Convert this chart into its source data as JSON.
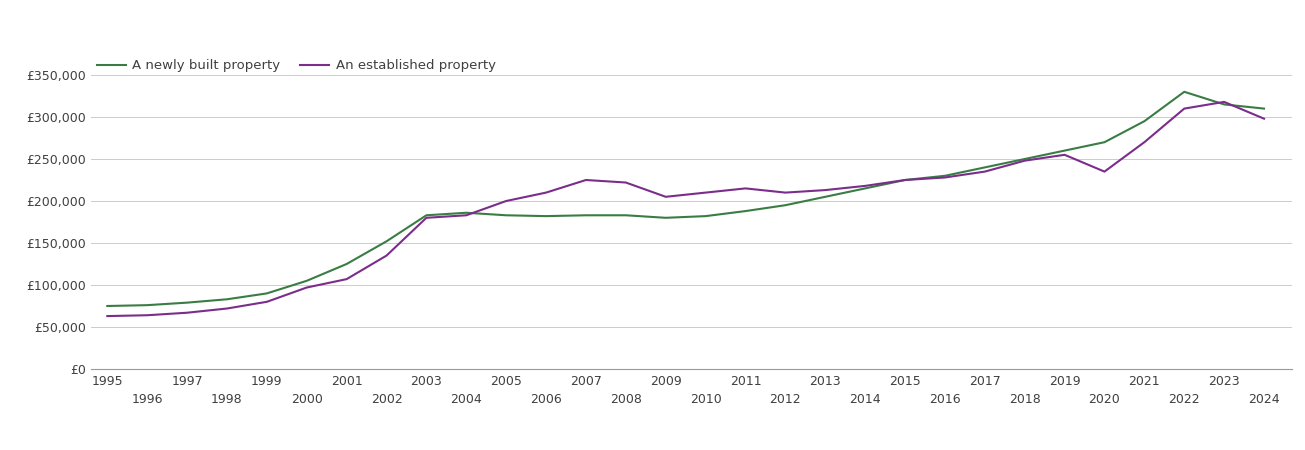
{
  "years": [
    1995,
    1996,
    1997,
    1998,
    1999,
    2000,
    2001,
    2002,
    2003,
    2004,
    2005,
    2006,
    2007,
    2008,
    2009,
    2010,
    2011,
    2012,
    2013,
    2014,
    2015,
    2016,
    2017,
    2018,
    2019,
    2020,
    2021,
    2022,
    2023,
    2024
  ],
  "new_build": [
    75000,
    76000,
    79000,
    83000,
    90000,
    105000,
    125000,
    152000,
    183000,
    186000,
    183000,
    182000,
    183000,
    183000,
    180000,
    182000,
    188000,
    195000,
    205000,
    215000,
    225000,
    230000,
    240000,
    250000,
    260000,
    270000,
    295000,
    330000,
    315000,
    310000
  ],
  "established": [
    63000,
    64000,
    67000,
    72000,
    80000,
    97000,
    107000,
    135000,
    180000,
    183000,
    200000,
    210000,
    225000,
    222000,
    205000,
    210000,
    215000,
    210000,
    213000,
    218000,
    225000,
    228000,
    235000,
    248000,
    255000,
    235000,
    270000,
    310000,
    318000,
    298000
  ],
  "new_build_color": "#3a7d44",
  "established_color": "#7b2d8b",
  "line_width": 1.5,
  "ylim": [
    0,
    375000
  ],
  "ytick_values": [
    0,
    50000,
    100000,
    150000,
    200000,
    250000,
    300000,
    350000
  ],
  "legend_new": "A newly built property",
  "legend_est": "An established property",
  "background_color": "#ffffff",
  "grid_color": "#cccccc",
  "font_color": "#404040",
  "font_size_ticks": 9,
  "font_size_legend": 9.5
}
